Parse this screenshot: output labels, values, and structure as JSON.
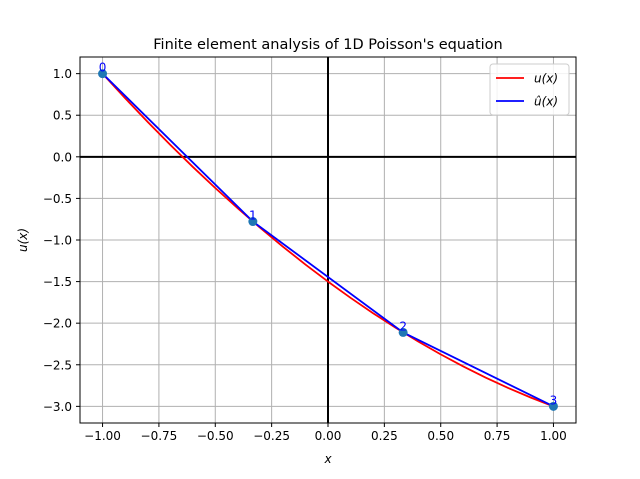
{
  "figure": {
    "title": "Finite element analysis of 1D Poisson's equation",
    "xlabel": "x",
    "ylabel": "u(x)",
    "colors": {
      "exact": "#ff0000",
      "approx": "#0000ff",
      "nodes": "#1f77b4",
      "node_labels": "#0000ff",
      "grid": "#b0b0b0",
      "axes": "#000000"
    }
  },
  "chart_data": {
    "type": "line",
    "title": "Finite element analysis of 1D Poisson's equation",
    "xlabel": "x",
    "ylabel": "u(x)",
    "xlim": [
      -1.1,
      1.1
    ],
    "ylim": [
      -3.2,
      1.2
    ],
    "grid": true,
    "legend_position": "upper right",
    "xticks": [
      -1.0,
      -0.75,
      -0.5,
      -0.25,
      0.0,
      0.25,
      0.5,
      0.75,
      1.0
    ],
    "xtick_labels": [
      "−1.00",
      "−0.75",
      "−0.50",
      "−0.25",
      "0.00",
      "0.25",
      "0.50",
      "0.75",
      "1.00"
    ],
    "yticks": [
      1.0,
      0.5,
      0.0,
      -0.5,
      -1.0,
      -1.5,
      -2.0,
      -2.5,
      -3.0
    ],
    "ytick_labels": [
      "1.0",
      "0.5",
      "0.0",
      "−0.5",
      "−1.0",
      "−1.5",
      "−2.0",
      "−2.5",
      "−3.0"
    ],
    "series": [
      {
        "name": "u(x)",
        "legend_label": "u(x)",
        "color": "#ff0000",
        "x": [
          -1.0,
          -0.9,
          -0.8,
          -0.7,
          -0.6,
          -0.5,
          -0.4,
          -0.3,
          -0.2,
          -0.1,
          0.0,
          0.1,
          0.2,
          0.3,
          0.4,
          0.5,
          0.6,
          0.7,
          0.8,
          0.9,
          1.0
        ],
        "y": [
          1.0,
          0.705,
          0.42,
          0.145,
          -0.12,
          -0.375,
          -0.62,
          -0.855,
          -1.08,
          -1.295,
          -1.5,
          -1.695,
          -1.88,
          -2.055,
          -2.22,
          -2.375,
          -2.52,
          -2.655,
          -2.78,
          -2.895,
          -3.0
        ]
      },
      {
        "name": "u_hat(x)",
        "legend_label": "û(x)",
        "color": "#0000ff",
        "x": [
          -1.0,
          -0.3333,
          0.3333,
          1.0
        ],
        "y": [
          1.0,
          -0.778,
          -2.111,
          -3.0
        ]
      }
    ],
    "nodes": [
      {
        "label": "0",
        "x": -1.0,
        "y": 1.0
      },
      {
        "label": "1",
        "x": -0.3333,
        "y": -0.778
      },
      {
        "label": "2",
        "x": 0.3333,
        "y": -2.111
      },
      {
        "label": "3",
        "x": 1.0,
        "y": -3.0
      }
    ]
  }
}
